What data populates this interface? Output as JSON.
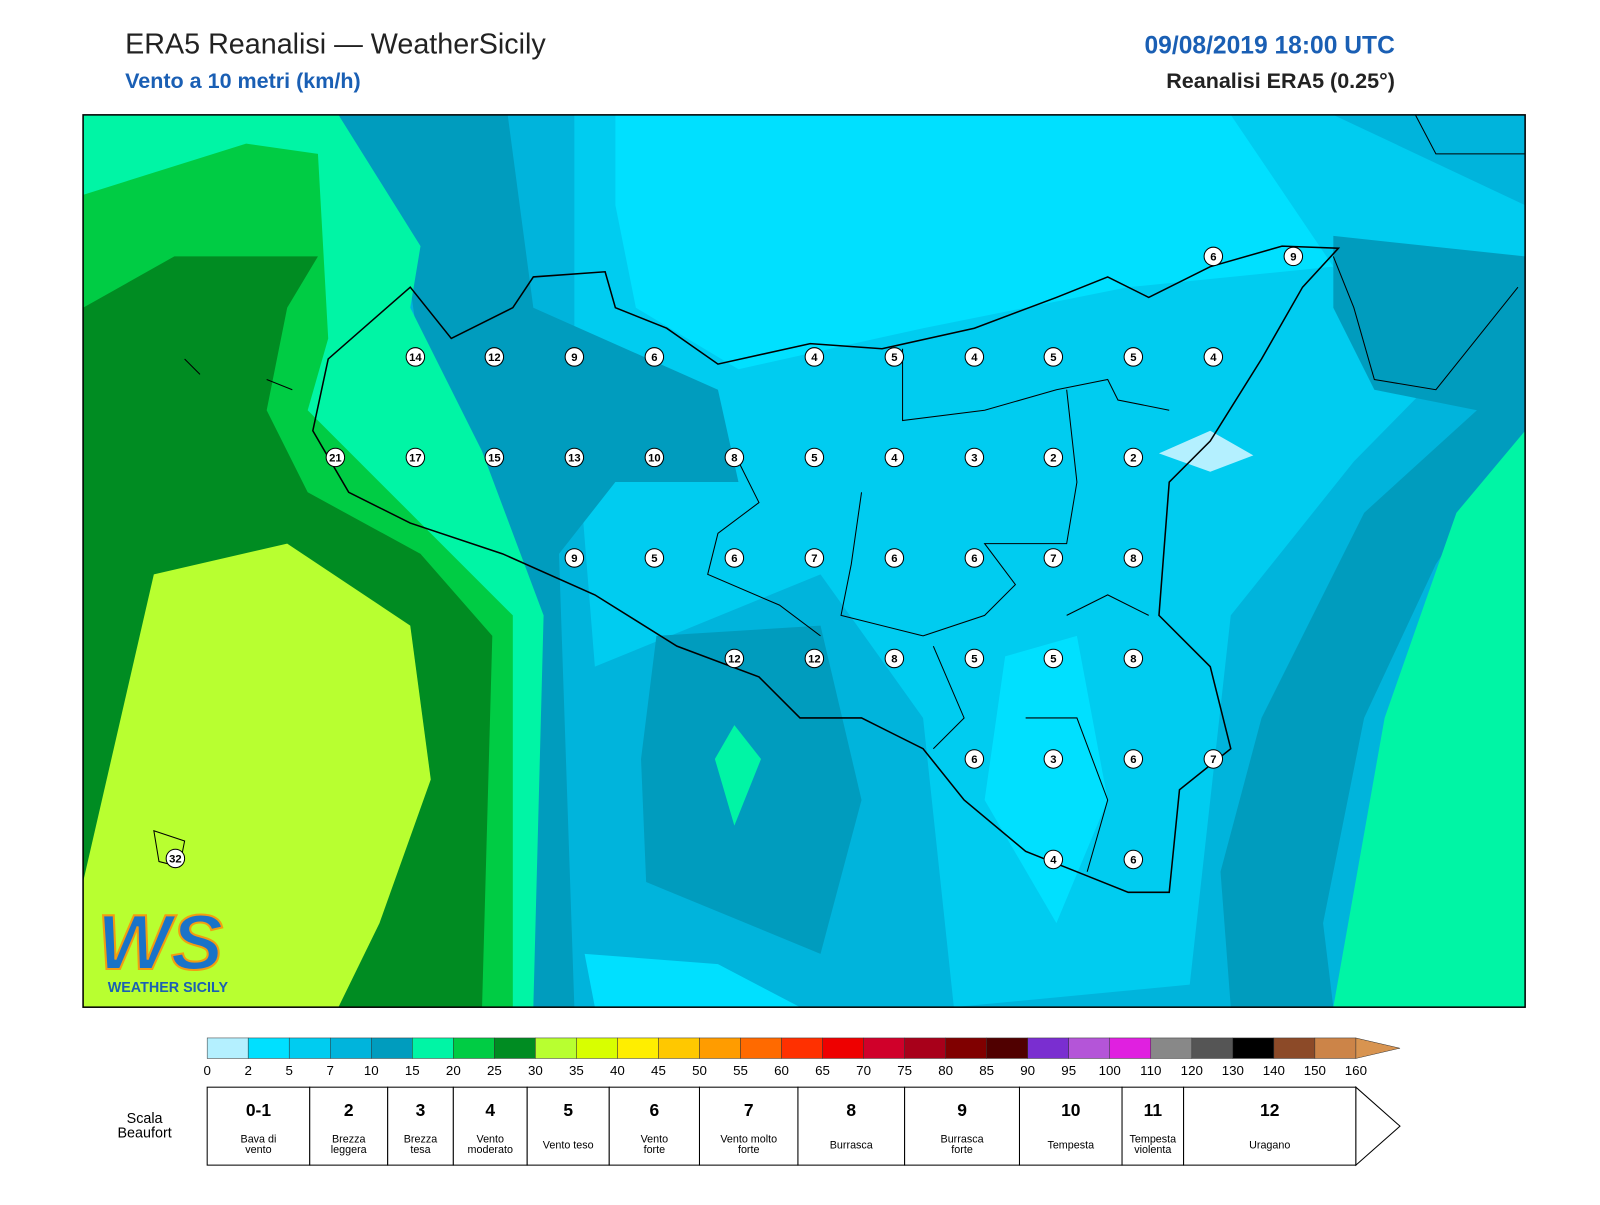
{
  "header": {
    "title": "ERA5 Reanalisi — WeatherSicily",
    "subtitle": "Vento a 10 metri (km/h)",
    "date": "09/08/2019 18:00 UTC",
    "source": "Reanalisi ERA5 (0.25°)"
  },
  "map": {
    "station_values": [
      6,
      9,
      14,
      12,
      9,
      6,
      4,
      5,
      4,
      5,
      5,
      4,
      21,
      17,
      15,
      13,
      10,
      8,
      5,
      4,
      3,
      2,
      2,
      9,
      5,
      6,
      7,
      6,
      6,
      7,
      8,
      12,
      12,
      8,
      5,
      5,
      8,
      6,
      3,
      6,
      7,
      4,
      6,
      32
    ]
  },
  "logo": {
    "mark": "WS",
    "name": "WEATHER SICILY"
  },
  "colorbar": {
    "ticks": [
      0,
      2,
      5,
      7,
      10,
      15,
      20,
      25,
      30,
      35,
      40,
      45,
      50,
      55,
      60,
      65,
      70,
      75,
      80,
      85,
      90,
      95,
      100,
      110,
      120,
      130,
      140,
      150,
      160
    ],
    "colors": [
      "#b4f0ff",
      "#00e0ff",
      "#00ccf0",
      "#00b4dc",
      "#009cbe",
      "#00f5a5",
      "#00cc44",
      "#008c22",
      "#b8ff30",
      "#d8ff00",
      "#ffee00",
      "#ffc800",
      "#ff9c00",
      "#ff6a00",
      "#ff3000",
      "#ee0000",
      "#d0002a",
      "#a8001a",
      "#800000",
      "#500000",
      "#7a2ed0",
      "#b455d8",
      "#e020e0",
      "#888888",
      "#555555",
      "#000000",
      "#8c4a28",
      "#cc8448"
    ],
    "arrow_color": "#d89450"
  },
  "beaufort": {
    "label": [
      "Scala",
      "Beaufort"
    ],
    "levels": [
      {
        "force": "0-1",
        "desc": [
          "Bava di",
          "vento"
        ]
      },
      {
        "force": "2",
        "desc": [
          "Brezza",
          "leggera"
        ]
      },
      {
        "force": "3",
        "desc": [
          "Brezza",
          "tesa"
        ]
      },
      {
        "force": "4",
        "desc": [
          "Vento",
          "moderato"
        ]
      },
      {
        "force": "5",
        "desc": [
          "Vento teso"
        ]
      },
      {
        "force": "6",
        "desc": [
          "Vento",
          "forte"
        ]
      },
      {
        "force": "7",
        "desc": [
          "Vento molto",
          "forte"
        ]
      },
      {
        "force": "8",
        "desc": [
          "Burrasca"
        ]
      },
      {
        "force": "9",
        "desc": [
          "Burrasca",
          "forte"
        ]
      },
      {
        "force": "10",
        "desc": [
          "Tempesta"
        ]
      },
      {
        "force": "11",
        "desc": [
          "Tempesta",
          "violenta"
        ]
      },
      {
        "force": "12",
        "desc": [
          "Uragano"
        ]
      }
    ]
  }
}
